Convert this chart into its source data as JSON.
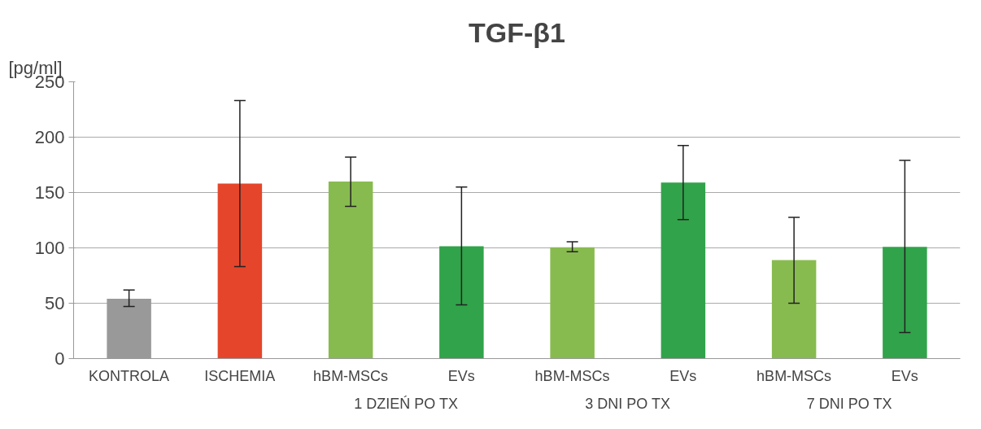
{
  "chart_data": {
    "type": "bar",
    "title": "TGF-β1",
    "ylabel": "[pg/ml]",
    "categories": [
      "KONTROLA",
      "ISCHEMIA",
      "hBM-MSCs",
      "EVs",
      "hBM-MSCs",
      "EVs",
      "hBM-MSCs",
      "EVs"
    ],
    "values": [
      54,
      158,
      160,
      101.5,
      100.5,
      159,
      89,
      101
    ],
    "colors": [
      "#999999",
      "#e5462b",
      "#88bb4f",
      "#31a34a",
      "#88bb4f",
      "#31a34a",
      "#88bb4f",
      "#31a34a"
    ],
    "errors": [
      [
        47,
        62
      ],
      [
        83,
        233
      ],
      [
        137.5,
        182
      ],
      [
        48.5,
        155
      ],
      [
        96.5,
        105.5
      ],
      [
        125.5,
        192.5
      ],
      [
        50,
        127.5
      ],
      [
        23.5,
        179
      ]
    ],
    "annotations": [
      "1 DZIEŃ PO TX",
      "3 DNI PO TX",
      "7 DNI PO TX"
    ],
    "ylim": [
      0,
      250
    ],
    "yticks": [
      0,
      50,
      100,
      150,
      200,
      250
    ],
    "grid": "y"
  }
}
